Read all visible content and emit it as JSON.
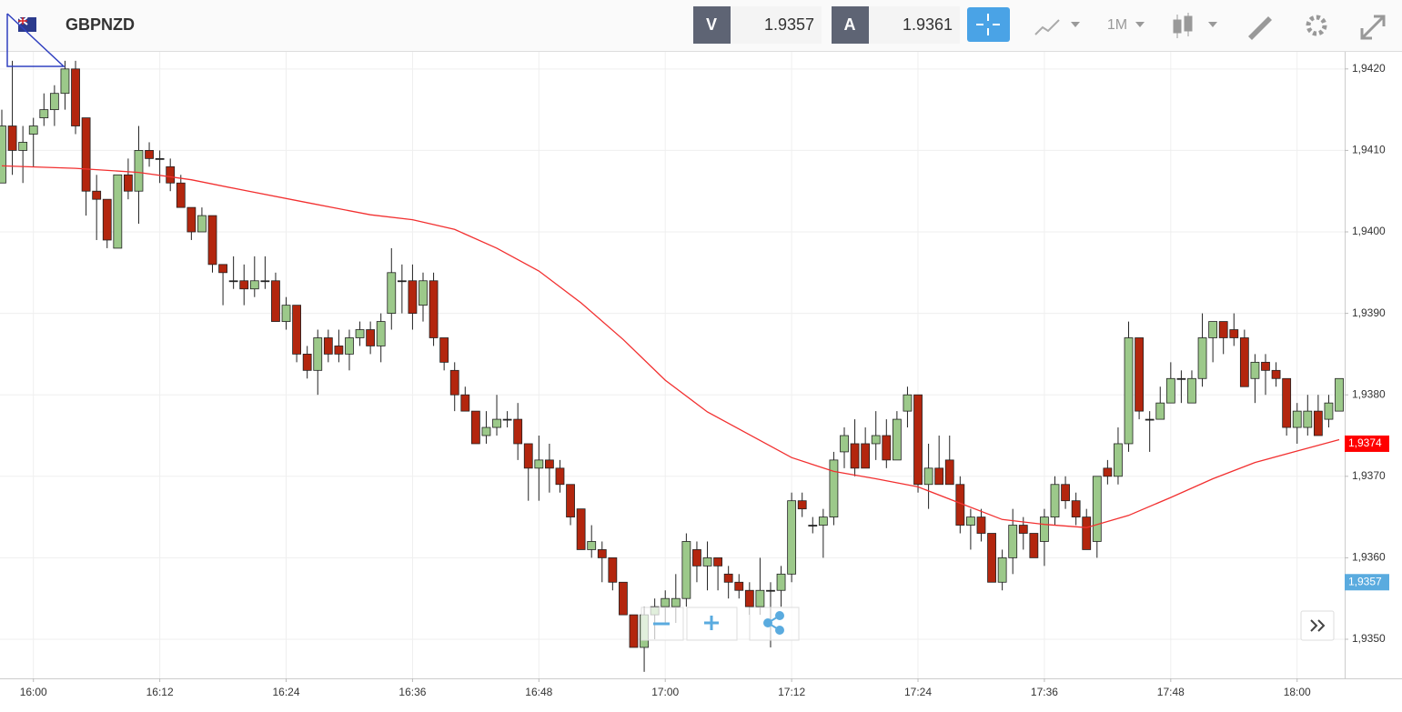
{
  "header": {
    "symbol": "GBPNZD",
    "bid_label": "V",
    "bid": "1.9357",
    "ask_label": "A",
    "ask": "1.9361",
    "timeframe": "1M"
  },
  "chart_data": {
    "type": "candlestick",
    "x": [
      "15:57",
      "15:58",
      "15:59",
      "16:00",
      "16:01",
      "16:02",
      "16:03",
      "16:04",
      "16:05",
      "16:06",
      "16:07",
      "16:08",
      "16:09",
      "16:10",
      "16:11",
      "16:12",
      "16:13",
      "16:14",
      "16:15",
      "16:16",
      "16:17",
      "16:18",
      "16:19",
      "16:20",
      "16:21",
      "16:22",
      "16:23",
      "16:24",
      "16:25",
      "16:26",
      "16:27",
      "16:28",
      "16:29",
      "16:30",
      "16:31",
      "16:32",
      "16:33",
      "16:34",
      "16:35",
      "16:36",
      "16:37",
      "16:38",
      "16:39",
      "16:40",
      "16:41",
      "16:42",
      "16:43",
      "16:44",
      "16:45",
      "16:46",
      "16:47",
      "16:48",
      "16:49",
      "16:50",
      "16:51",
      "16:52",
      "16:53",
      "16:54",
      "16:55",
      "16:56",
      "16:57",
      "16:58",
      "16:59",
      "17:00",
      "17:01",
      "17:02",
      "17:03",
      "17:04",
      "17:05",
      "17:06",
      "17:07",
      "17:08",
      "17:09",
      "17:10",
      "17:11",
      "17:12",
      "17:13",
      "17:14",
      "17:15",
      "17:16",
      "17:17",
      "17:18",
      "17:19",
      "17:20",
      "17:21",
      "17:22",
      "17:23",
      "17:24",
      "17:25",
      "17:26",
      "17:27",
      "17:28",
      "17:29",
      "17:30",
      "17:31",
      "17:32",
      "17:33",
      "17:34",
      "17:35",
      "17:36",
      "17:37",
      "17:38",
      "17:39",
      "17:40",
      "17:41",
      "17:42",
      "17:43",
      "17:44",
      "17:45",
      "17:46",
      "17:47",
      "17:48",
      "17:49",
      "17:50",
      "17:51",
      "17:52",
      "17:53",
      "17:54",
      "17:55",
      "17:56",
      "17:57",
      "17:58",
      "17:59",
      "18:00",
      "18:01",
      "18:02",
      "18:03",
      "18:04"
    ],
    "open": [
      1.9406,
      1.9413,
      1.941,
      1.9412,
      1.9414,
      1.9415,
      1.9417,
      1.942,
      1.9414,
      1.9405,
      1.9404,
      1.9398,
      1.9407,
      1.9405,
      1.941,
      1.9409,
      1.9408,
      1.9406,
      1.9403,
      1.94,
      1.9402,
      1.9396,
      1.9394,
      1.9394,
      1.9393,
      1.9394,
      1.9394,
      1.9389,
      1.9391,
      1.9385,
      1.9383,
      1.9387,
      1.9386,
      1.9385,
      1.9387,
      1.9388,
      1.9386,
      1.939,
      1.9394,
      1.9394,
      1.9391,
      1.9394,
      1.9387,
      1.9383,
      1.938,
      1.9378,
      1.9375,
      1.9376,
      1.9377,
      1.9377,
      1.9374,
      1.9371,
      1.9372,
      1.9371,
      1.9369,
      1.9366,
      1.9361,
      1.9361,
      1.936,
      1.9357,
      1.9353,
      1.9349,
      1.9353,
      1.9354,
      1.9354,
      1.9355,
      1.9361,
      1.9359,
      1.936,
      1.9358,
      1.9357,
      1.9356,
      1.9354,
      1.9356,
      1.9356,
      1.9358,
      1.9367,
      1.9364,
      1.9364,
      1.9365,
      1.9373,
      1.9374,
      1.9374,
      1.9374,
      1.9375,
      1.9372,
      1.9378,
      1.938,
      1.9369,
      1.9371,
      1.9372,
      1.9369,
      1.9364,
      1.9365,
      1.9363,
      1.9357,
      1.936,
      1.9364,
      1.9363,
      1.9362,
      1.9365,
      1.9369,
      1.9367,
      1.9365,
      1.9362,
      1.9371,
      1.937,
      1.9374,
      1.9387,
      1.9377,
      1.9377,
      1.9379,
      1.9382,
      1.9379,
      1.9382,
      1.9387,
      1.9389,
      1.9388,
      1.9387,
      1.9382,
      1.9384,
      1.9383,
      1.9382,
      1.9376,
      1.9376,
      1.9378,
      1.9377,
      1.9378
    ],
    "high": [
      1.9415,
      1.9421,
      1.9413,
      1.9414,
      1.9417,
      1.9418,
      1.9421,
      1.9421,
      1.9414,
      1.9407,
      1.9404,
      1.9407,
      1.9409,
      1.9413,
      1.9411,
      1.941,
      1.9409,
      1.9407,
      1.9403,
      1.9403,
      1.9402,
      1.9396,
      1.9397,
      1.9396,
      1.9397,
      1.9397,
      1.9395,
      1.9392,
      1.9391,
      1.9386,
      1.9388,
      1.9388,
      1.9388,
      1.9388,
      1.9389,
      1.9389,
      1.939,
      1.9398,
      1.9396,
      1.9396,
      1.9395,
      1.9395,
      1.9387,
      1.9384,
      1.9381,
      1.9378,
      1.9378,
      1.938,
      1.9378,
      1.9379,
      1.9374,
      1.9375,
      1.9374,
      1.9372,
      1.9369,
      1.9366,
      1.9364,
      1.9362,
      1.936,
      1.9357,
      1.9353,
      1.9354,
      1.9355,
      1.9356,
      1.9358,
      1.9363,
      1.9362,
      1.9362,
      1.936,
      1.9359,
      1.9358,
      1.9357,
      1.936,
      1.9357,
      1.9359,
      1.9368,
      1.9368,
      1.9365,
      1.9366,
      1.9373,
      1.9376,
      1.9377,
      1.9376,
      1.9378,
      1.9377,
      1.9378,
      1.9381,
      1.938,
      1.9374,
      1.9375,
      1.9375,
      1.937,
      1.9366,
      1.9366,
      1.9363,
      1.9361,
      1.9366,
      1.9365,
      1.9363,
      1.9366,
      1.937,
      1.937,
      1.9368,
      1.9366,
      1.937,
      1.9372,
      1.9376,
      1.9389,
      1.9387,
      1.9378,
      1.9381,
      1.9384,
      1.9383,
      1.9383,
      1.939,
      1.9389,
      1.9389,
      1.939,
      1.9388,
      1.9385,
      1.9385,
      1.9384,
      1.9382,
      1.9379,
      1.938,
      1.938,
      1.938,
      1.9382
    ],
    "low": [
      1.9406,
      1.9407,
      1.9406,
      1.9408,
      1.9413,
      1.9413,
      1.9415,
      1.9412,
      1.9402,
      1.9399,
      1.9398,
      1.9398,
      1.9404,
      1.9401,
      1.9408,
      1.9406,
      1.9405,
      1.9403,
      1.9399,
      1.94,
      1.9395,
      1.9391,
      1.9393,
      1.9391,
      1.9392,
      1.9393,
      1.9389,
      1.9388,
      1.9384,
      1.9382,
      1.938,
      1.9384,
      1.9384,
      1.9383,
      1.9386,
      1.9385,
      1.9384,
      1.9388,
      1.939,
      1.9388,
      1.9389,
      1.9386,
      1.9383,
      1.9378,
      1.9378,
      1.9374,
      1.9374,
      1.9375,
      1.9376,
      1.9372,
      1.9367,
      1.9367,
      1.9368,
      1.9368,
      1.9364,
      1.9361,
      1.936,
      1.9357,
      1.9356,
      1.9353,
      1.9349,
      1.9346,
      1.935,
      1.9352,
      1.9352,
      1.9354,
      1.9357,
      1.9356,
      1.9356,
      1.9355,
      1.9355,
      1.9353,
      1.9353,
      1.9349,
      1.9354,
      1.9357,
      1.9365,
      1.9363,
      1.936,
      1.9364,
      1.9371,
      1.937,
      1.9371,
      1.9372,
      1.9371,
      1.9372,
      1.9376,
      1.9368,
      1.9366,
      1.9369,
      1.9369,
      1.9363,
      1.9361,
      1.9362,
      1.9357,
      1.9356,
      1.9358,
      1.9361,
      1.936,
      1.9359,
      1.9364,
      1.9366,
      1.9364,
      1.9361,
      1.936,
      1.9369,
      1.9369,
      1.9373,
      1.9377,
      1.9373,
      1.9377,
      1.9379,
      1.9379,
      1.9379,
      1.9381,
      1.9384,
      1.9385,
      1.9386,
      1.9381,
      1.9379,
      1.938,
      1.9381,
      1.9375,
      1.9374,
      1.9375,
      1.9375,
      1.9376,
      1.9378
    ],
    "close": [
      1.9413,
      1.941,
      1.9411,
      1.9413,
      1.9415,
      1.9417,
      1.942,
      1.9413,
      1.9405,
      1.9404,
      1.9399,
      1.9407,
      1.9405,
      1.941,
      1.9409,
      1.9409,
      1.9406,
      1.9403,
      1.94,
      1.9402,
      1.9396,
      1.9395,
      1.9394,
      1.9393,
      1.9394,
      1.9394,
      1.9389,
      1.9391,
      1.9385,
      1.9383,
      1.9387,
      1.9385,
      1.9385,
      1.9387,
      1.9388,
      1.9386,
      1.9389,
      1.9395,
      1.9394,
      1.939,
      1.9394,
      1.9387,
      1.9384,
      1.938,
      1.9378,
      1.9374,
      1.9376,
      1.9377,
      1.9377,
      1.9374,
      1.9371,
      1.9372,
      1.9371,
      1.9369,
      1.9365,
      1.9361,
      1.9362,
      1.936,
      1.9357,
      1.9353,
      1.9349,
      1.9353,
      1.9354,
      1.9355,
      1.9355,
      1.9362,
      1.9359,
      1.936,
      1.9359,
      1.9357,
      1.9356,
      1.9354,
      1.9356,
      1.9356,
      1.9358,
      1.9367,
      1.9366,
      1.9364,
      1.9365,
      1.9372,
      1.9375,
      1.9371,
      1.9371,
      1.9375,
      1.9372,
      1.9377,
      1.938,
      1.9369,
      1.9371,
      1.9369,
      1.9369,
      1.9364,
      1.9365,
      1.9363,
      1.9357,
      1.936,
      1.9364,
      1.9363,
      1.936,
      1.9365,
      1.9369,
      1.9367,
      1.9365,
      1.9361,
      1.937,
      1.937,
      1.9374,
      1.9387,
      1.9378,
      1.9377,
      1.9379,
      1.9382,
      1.9382,
      1.9382,
      1.9387,
      1.9389,
      1.9387,
      1.9387,
      1.9381,
      1.9384,
      1.9383,
      1.9382,
      1.9376,
      1.9378,
      1.9378,
      1.9375,
      1.9379,
      1.9382
    ],
    "up_color": "#9cc98a",
    "down_color": "#b3260e",
    "moving_average": {
      "color": "#f23030",
      "x": [
        "15:57",
        "16:04",
        "16:10",
        "16:15",
        "16:20",
        "16:26",
        "16:32",
        "16:36",
        "16:40",
        "16:44",
        "16:48",
        "16:52",
        "16:56",
        "17:00",
        "17:04",
        "17:08",
        "17:12",
        "17:16",
        "17:20",
        "17:24",
        "17:28",
        "17:32",
        "17:36",
        "17:40",
        "17:44",
        "17:48",
        "17:52",
        "17:56",
        "18:00",
        "18:04"
      ],
      "values": [
        1.94081,
        1.94078,
        1.94073,
        1.94064,
        1.94051,
        1.94036,
        1.94021,
        1.94015,
        1.94003,
        1.9398,
        1.93952,
        1.93913,
        1.93868,
        1.93818,
        1.93779,
        1.93751,
        1.93723,
        1.93706,
        1.93697,
        1.93687,
        1.93667,
        1.93647,
        1.93641,
        1.93637,
        1.93652,
        1.93674,
        1.93697,
        1.93717,
        1.93731,
        1.93745
      ]
    },
    "price_tags": [
      {
        "value": 1.9374,
        "label": "1,9374",
        "color": "#ff0000"
      },
      {
        "value": 1.9357,
        "label": "1,9357",
        "color": "#5aabdf"
      }
    ],
    "ylim": [
      1.93452,
      1.94221
    ],
    "yticks": [
      {
        "value": 1.935,
        "label": "1,9350"
      },
      {
        "value": 1.936,
        "label": "1,9360"
      },
      {
        "value": 1.937,
        "label": "1,9370"
      },
      {
        "value": 1.938,
        "label": "1,9380"
      },
      {
        "value": 1.939,
        "label": "1,9390"
      },
      {
        "value": 1.94,
        "label": "1,9400"
      },
      {
        "value": 1.941,
        "label": "1,9410"
      },
      {
        "value": 1.942,
        "label": "1,9420"
      }
    ],
    "xticks": [
      "16:00",
      "16:12",
      "16:24",
      "16:36",
      "16:48",
      "17:00",
      "17:12",
      "17:24",
      "17:36",
      "17:48",
      "18:00"
    ],
    "grid": true
  }
}
